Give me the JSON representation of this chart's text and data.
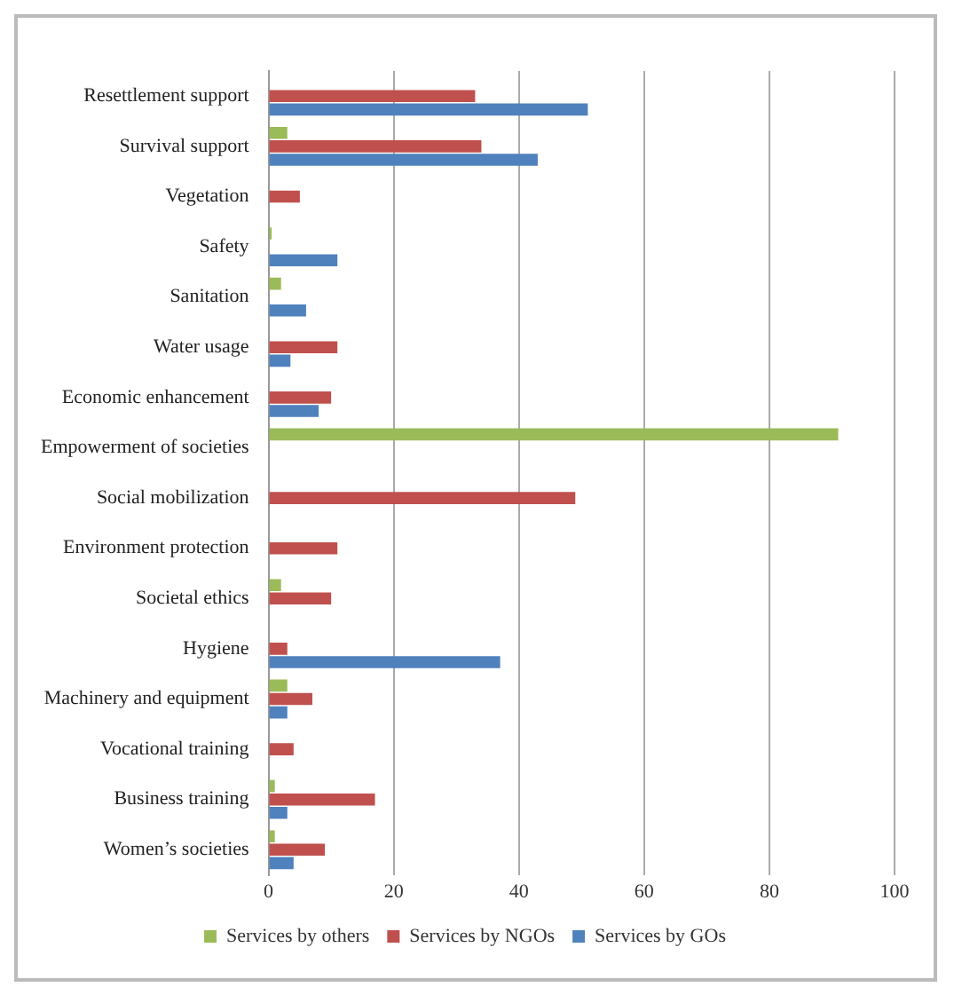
{
  "chart_data": {
    "type": "bar",
    "orientation": "horizontal",
    "categories": [
      "Resettlement support",
      "Survival support",
      "Vegetation",
      "Safety",
      "Sanitation",
      "Water usage",
      "Economic enhancement",
      "Empowerment of societies",
      "Social mobilization",
      "Environment protection",
      "Societal ethics",
      "Hygiene",
      "Machinery and equipment",
      "Vocational training",
      "Business training",
      "Women’s societies"
    ],
    "series": [
      {
        "name": "Services by others",
        "color": "#9bbb59",
        "values": [
          0,
          3,
          0,
          0.5,
          2,
          0,
          0,
          91,
          0,
          0,
          2,
          0,
          3,
          0,
          1,
          1
        ]
      },
      {
        "name": "Services by NGOs",
        "color": "#c0504d",
        "values": [
          33,
          34,
          5,
          0,
          0,
          11,
          10,
          0,
          49,
          11,
          10,
          3,
          7,
          4,
          17,
          9
        ]
      },
      {
        "name": "Services by GOs",
        "color": "#4f81bd",
        "values": [
          51,
          43,
          0,
          11,
          6,
          3.5,
          8,
          0,
          0,
          0,
          0,
          37,
          3,
          0,
          3,
          4
        ]
      }
    ],
    "xlim": [
      0,
      100
    ],
    "xticks": [
      0,
      20,
      40,
      60,
      80,
      100
    ],
    "grid": "x",
    "legend": "bottom"
  }
}
